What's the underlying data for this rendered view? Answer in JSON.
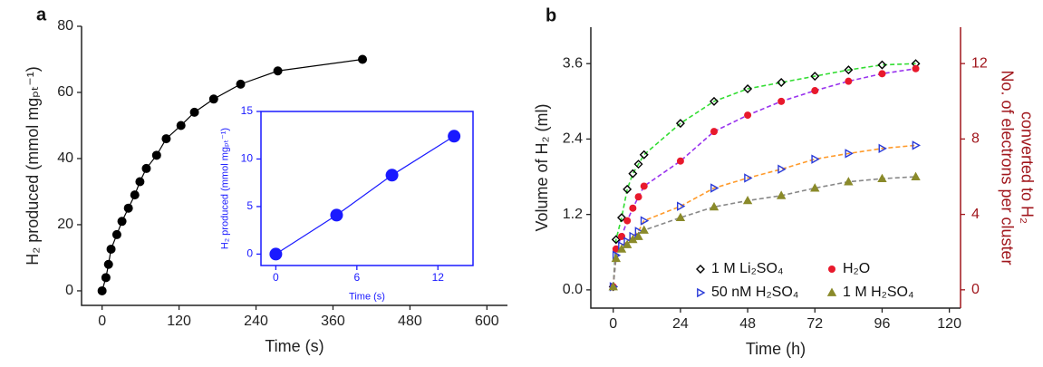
{
  "chart_data": [
    {
      "type": "line",
      "panel_label": "a",
      "xlabel": "Time (s)",
      "ylabel": "H₂ produced (mmol mgₚₜ⁻¹)",
      "x": [
        0,
        6,
        10,
        14,
        23,
        31,
        41,
        51,
        59,
        69,
        85,
        100,
        123,
        144,
        174,
        216,
        274,
        406
      ],
      "values": [
        0,
        4,
        8,
        12.6,
        17,
        21,
        25,
        29,
        33,
        37,
        41,
        46,
        50,
        54,
        58,
        62.5,
        66.5,
        70
      ],
      "color": "#000000",
      "xlim": [
        -32,
        632
      ],
      "xticks": [
        0,
        120,
        240,
        360,
        480,
        600
      ],
      "ylim": [
        -4.4,
        80
      ],
      "yticks": [
        0,
        20,
        40,
        60,
        80
      ]
    },
    {
      "type": "line",
      "xlabel": "Time (s)",
      "ylabel": "H₂ produced (mmol mgₚₜ⁻¹)",
      "x": [
        0,
        4.5,
        8.6,
        13.2
      ],
      "values": [
        0,
        4.1,
        8.3,
        12.4
      ],
      "color": "#1a1aff",
      "xlim": [
        -1.1,
        14.6
      ],
      "xticks": [
        0,
        6,
        12
      ],
      "ylim": [
        -1.2,
        15
      ],
      "yticks": [
        0,
        5,
        10,
        15
      ]
    },
    {
      "type": "scatter",
      "panel_label": "b",
      "xlabel": "Time (h)",
      "ylabel": "Volume of H₂ (ml)",
      "y2label": [
        "No. of electrons per cluster",
        "converted to H₂"
      ],
      "y2color": "#a0161c",
      "x": [
        0,
        1,
        3,
        5,
        7,
        9,
        11,
        24,
        36,
        48,
        60,
        72,
        84,
        96,
        108
      ],
      "series": [
        {
          "name": "1 M Li₂SO₄",
          "color": "#000000",
          "marker": "diamond-open",
          "fit_color": "#33dd33",
          "values": [
            0.05,
            0.8,
            1.15,
            1.6,
            1.85,
            2.0,
            2.15,
            2.65,
            3.0,
            3.2,
            3.3,
            3.4,
            3.5,
            3.58,
            3.6
          ]
        },
        {
          "name": "H₂O",
          "color": "#e8192c",
          "marker": "circle",
          "fit_color": "#9933ee",
          "values": [
            0.05,
            0.65,
            0.85,
            1.1,
            1.3,
            1.48,
            1.65,
            2.05,
            2.52,
            2.78,
            3.0,
            3.17,
            3.32,
            3.44,
            3.52
          ]
        },
        {
          "name": "50 nM H₂SO₄",
          "color": "#2a3bd8",
          "marker": "triangle-right-open",
          "fit_color": "#ff9a2a",
          "values": [
            0.05,
            0.55,
            0.7,
            0.77,
            0.85,
            0.93,
            1.1,
            1.33,
            1.62,
            1.78,
            1.92,
            2.08,
            2.17,
            2.25,
            2.3
          ]
        },
        {
          "name": "1 M H₂SO₄",
          "color": "#8a8a2a",
          "marker": "triangle-up",
          "fit_color": "#888888",
          "values": [
            0.05,
            0.5,
            0.65,
            0.72,
            0.8,
            0.85,
            0.95,
            1.15,
            1.32,
            1.42,
            1.5,
            1.62,
            1.72,
            1.77,
            1.8
          ]
        }
      ],
      "legend": "lower right",
      "xlim": [
        -8,
        124
      ],
      "xticks": [
        0,
        24,
        48,
        72,
        96,
        120
      ],
      "ylim": [
        -0.29,
        4.18
      ],
      "yticks": [
        {
          "value": 0,
          "label": "0.0"
        },
        1.2,
        2.4,
        3.6
      ],
      "y2lim": [
        -0.97,
        13.93
      ],
      "y2ticks": [
        0,
        4,
        8,
        12
      ]
    }
  ]
}
